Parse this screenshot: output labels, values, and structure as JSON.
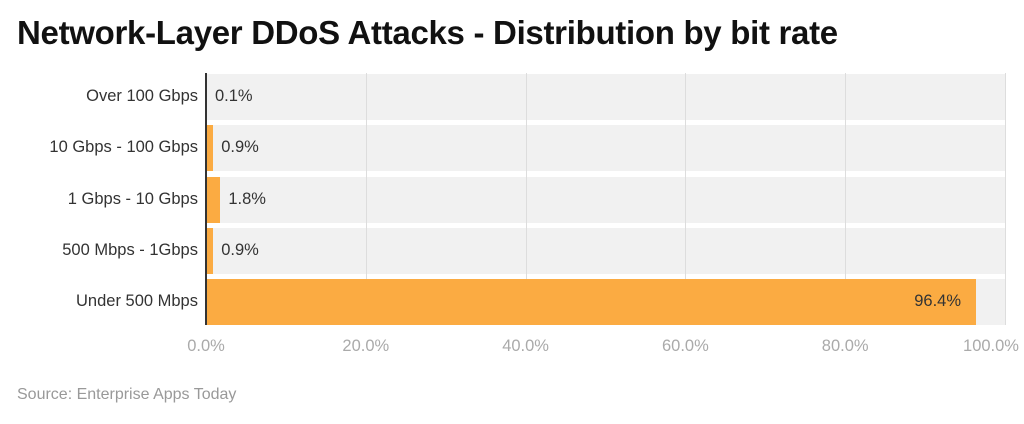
{
  "chart_data": {
    "type": "bar",
    "orientation": "horizontal",
    "title": "Network-Layer DDoS Attacks - Distribution by bit rate",
    "categories": [
      "Over 100 Gbps",
      "10 Gbps - 100 Gbps",
      "1 Gbps - 10 Gbps",
      "500 Mbps - 1Gbps",
      "Under 500 Mbps"
    ],
    "values": [
      0.1,
      0.9,
      1.8,
      0.9,
      96.4
    ],
    "value_labels": [
      "0.1%",
      "0.9%",
      "1.8%",
      "0.9%",
      "96.4%"
    ],
    "xlabel": "",
    "ylabel": "",
    "xlim": [
      0,
      100
    ],
    "x_ticks": [
      "0.0%",
      "20.0%",
      "40.0%",
      "60.0%",
      "80.0%",
      "100.0%"
    ],
    "grid": true,
    "legend": null,
    "bar_color": "#fbab42",
    "source": "Source: Enterprise Apps Today"
  },
  "header": {
    "title": "Network-Layer DDoS Attacks - Distribution by bit rate"
  },
  "rows": [
    {
      "label": "Over 100 Gbps",
      "value": 0.1,
      "value_label": "0.1%"
    },
    {
      "label": "10 Gbps - 100 Gbps",
      "value": 0.9,
      "value_label": "0.9%"
    },
    {
      "label": "1 Gbps - 10 Gbps",
      "value": 1.8,
      "value_label": "1.8%"
    },
    {
      "label": "500 Mbps - 1Gbps",
      "value": 0.9,
      "value_label": "0.9%"
    },
    {
      "label": "Under 500 Mbps",
      "value": 96.4,
      "value_label": "96.4%"
    }
  ],
  "axis": {
    "ticks": [
      "0.0%",
      "20.0%",
      "40.0%",
      "60.0%",
      "80.0%",
      "100.0%"
    ]
  },
  "footer": {
    "source": "Source: Enterprise Apps Today"
  },
  "colors": {
    "bar": "#fbab42",
    "row_bg": "#f1f1f1",
    "grid": "#dddddd"
  }
}
